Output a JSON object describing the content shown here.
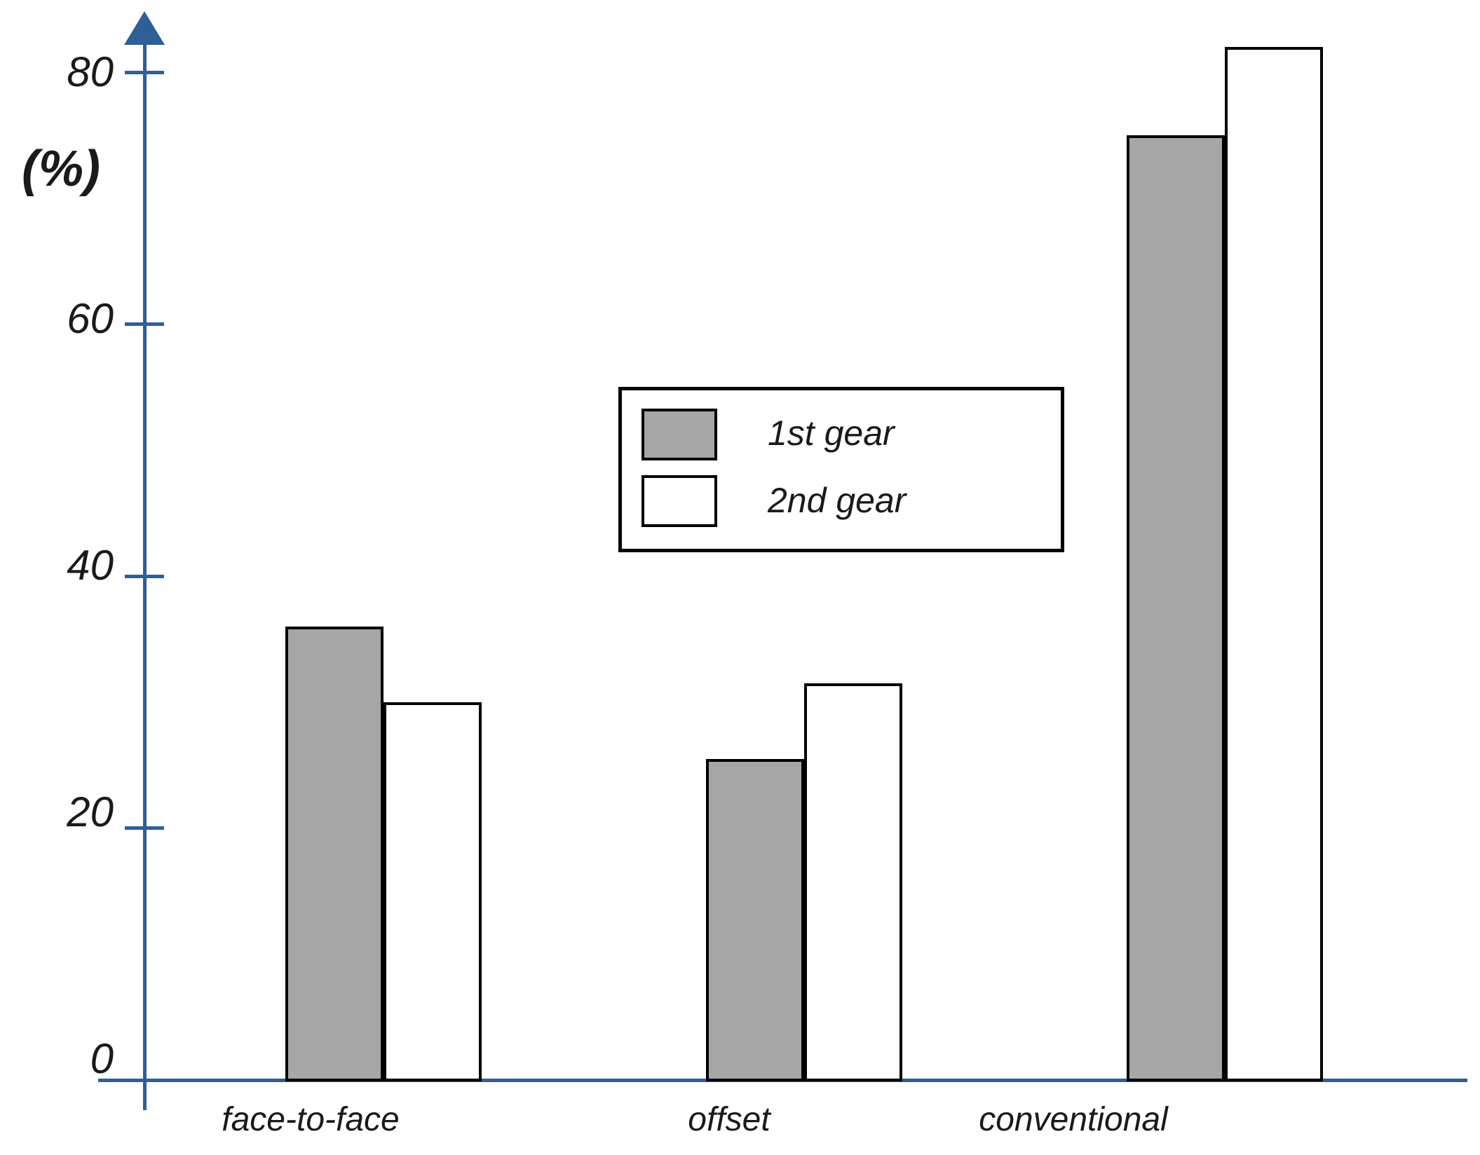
{
  "chart_data": {
    "type": "bar",
    "title": "",
    "ylabel": "(%)",
    "xlabel": "",
    "categories": [
      "face-to-face",
      "offset",
      "conventional"
    ],
    "series": [
      {
        "name": "1st gear",
        "color": "#a6a6a6",
        "values": [
          36,
          25.5,
          75
        ]
      },
      {
        "name": "2nd gear",
        "color": "#ffffff",
        "values": [
          30,
          31.5,
          82
        ]
      }
    ],
    "yticks": [
      0,
      20,
      40,
      60,
      80
    ],
    "ylim": [
      0,
      86
    ],
    "grid": false,
    "legend_position": "center",
    "colors": {
      "axis": "#2e5f96",
      "bar_border": "#000000",
      "text": "#1a1a1a",
      "background": "#ffffff"
    }
  }
}
